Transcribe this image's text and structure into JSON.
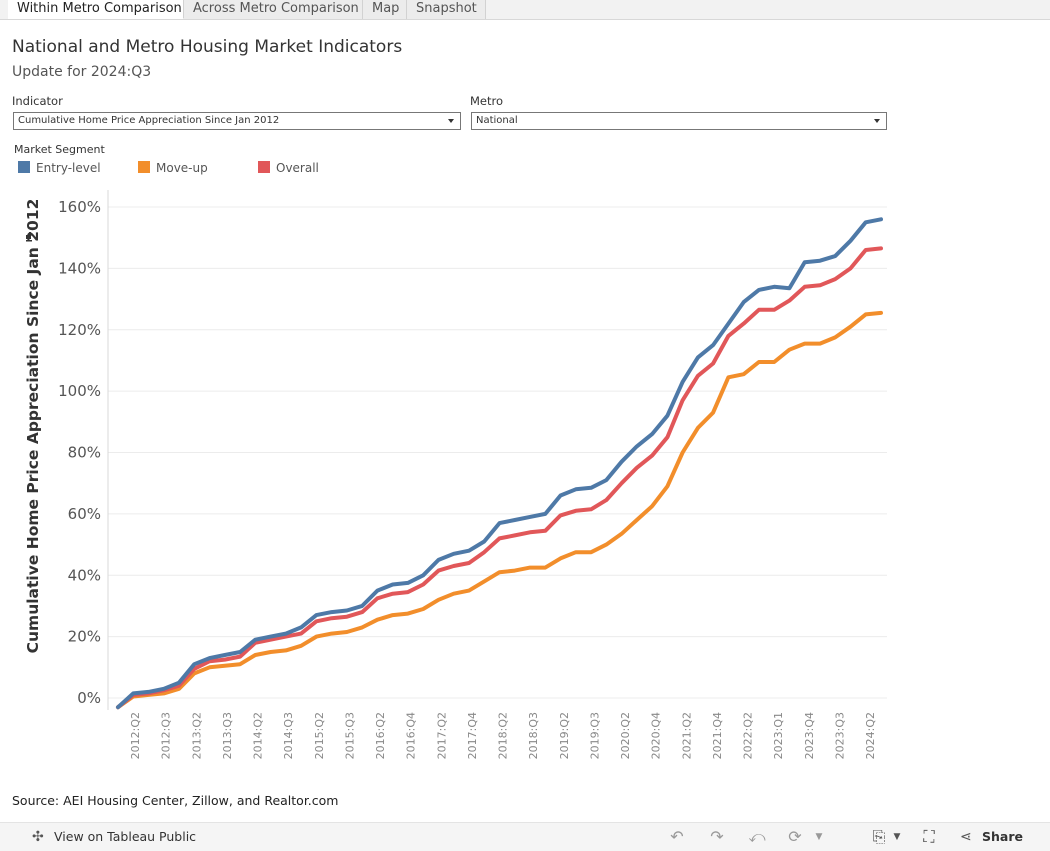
{
  "tabs": [
    {
      "label": "Within Metro Comparison",
      "active": true
    },
    {
      "label": "Across Metro Comparison",
      "active": false
    },
    {
      "label": "Map",
      "active": false
    },
    {
      "label": "Snapshot",
      "active": false
    }
  ],
  "header": {
    "title": "National and Metro Housing Market Indicators",
    "subtitle": "Update for 2024:Q3"
  },
  "filters": {
    "indicator_label": "Indicator",
    "indicator_value": "Cumulative Home Price Appreciation Since Jan 2012",
    "metro_label": "Metro",
    "metro_value": "National"
  },
  "legend": {
    "title": "Market Segment",
    "items": [
      {
        "label": "Entry-level",
        "color": "#4e79a7"
      },
      {
        "label": "Move-up",
        "color": "#f28e2b"
      },
      {
        "label": "Overall",
        "color": "#e15759"
      }
    ]
  },
  "chart_data": {
    "type": "line",
    "ylabel": "Cumulative Home Price Appreciation Since Jan 2012",
    "ylim": [
      -3,
      162
    ],
    "yticks": [
      0,
      20,
      40,
      60,
      80,
      100,
      120,
      140,
      160
    ],
    "ytick_labels": [
      "0%",
      "20%",
      "40%",
      "60%",
      "80%",
      "100%",
      "120%",
      "140%",
      "160%"
    ],
    "x": [
      "2012:Q1",
      "2012:Q2",
      "2012:Q3",
      "2012:Q4",
      "2013:Q1",
      "2013:Q2",
      "2013:Q3",
      "2013:Q4",
      "2014:Q1",
      "2014:Q2",
      "2014:Q3",
      "2014:Q4",
      "2015:Q1",
      "2015:Q2",
      "2015:Q3",
      "2015:Q4",
      "2016:Q1",
      "2016:Q2",
      "2016:Q3",
      "2016:Q4",
      "2017:Q1",
      "2017:Q2",
      "2017:Q3",
      "2017:Q4",
      "2018:Q1",
      "2018:Q2",
      "2018:Q3",
      "2018:Q4",
      "2019:Q1",
      "2019:Q2",
      "2019:Q3",
      "2019:Q4",
      "2020:Q1",
      "2020:Q2",
      "2020:Q3",
      "2020:Q4",
      "2021:Q1",
      "2021:Q2",
      "2021:Q3",
      "2021:Q4",
      "2022:Q1",
      "2022:Q2",
      "2022:Q3",
      "2022:Q4",
      "2023:Q1",
      "2023:Q2",
      "2023:Q3",
      "2023:Q4",
      "2024:Q1",
      "2024:Q2",
      "2024:Q3"
    ],
    "xtick_labels": [
      "2012:Q2",
      "2012:Q3",
      "2013:Q2",
      "2013:Q3",
      "2014:Q2",
      "2014:Q3",
      "2015:Q2",
      "2015:Q3",
      "2016:Q2",
      "2016:Q4",
      "2017:Q2",
      "2017:Q4",
      "2018:Q2",
      "2018:Q3",
      "2019:Q2",
      "2019:Q3",
      "2020:Q2",
      "2020:Q4",
      "2021:Q2",
      "2021:Q4",
      "2022:Q2",
      "2023:Q1",
      "2023:Q4",
      "2023:Q3",
      "2024:Q2"
    ],
    "series": [
      {
        "name": "Entry-level",
        "color": "#4e79a7",
        "values": [
          -3,
          1.5,
          2,
          3,
          5,
          11,
          13,
          14,
          15,
          19,
          20,
          21,
          23,
          27,
          28,
          28.5,
          30,
          35,
          37,
          37.5,
          40,
          45,
          47,
          48,
          51,
          57,
          58,
          59,
          60,
          66,
          68,
          68.5,
          71,
          77,
          82,
          86,
          92,
          103,
          111,
          115,
          122,
          129,
          133,
          134,
          133.5,
          142,
          142.5,
          144,
          149,
          155,
          156
        ]
      },
      {
        "name": "Move-up",
        "color": "#f28e2b",
        "values": [
          -3,
          0.5,
          1,
          1.5,
          3,
          8,
          10,
          10.5,
          11,
          14,
          15,
          15.5,
          17,
          20,
          21,
          21.5,
          23,
          25.5,
          27,
          27.5,
          29,
          32,
          34,
          35,
          38,
          41,
          41.5,
          42.5,
          42.5,
          45.5,
          47.5,
          47.5,
          50,
          53.5,
          58,
          62.5,
          69,
          80,
          88,
          93,
          104.5,
          105.5,
          109.5,
          109.5,
          113.5,
          115.5,
          115.5,
          117.5,
          121,
          125,
          125.5
        ]
      },
      {
        "name": "Overall",
        "color": "#e15759",
        "values": [
          -3,
          1,
          1.5,
          2.5,
          4,
          9.5,
          12,
          12.5,
          13.5,
          18,
          19,
          20,
          21,
          25,
          26,
          26.5,
          28,
          32.5,
          34,
          34.5,
          37,
          41.5,
          43,
          44,
          47.5,
          52,
          53,
          54,
          54.5,
          59.5,
          61,
          61.5,
          64.5,
          70,
          75,
          79,
          85,
          97,
          105,
          109,
          118,
          122,
          126.5,
          126.5,
          129.5,
          134,
          134.5,
          136.5,
          140,
          146,
          146.5
        ]
      }
    ]
  },
  "source": "Source: AEI Housing Center, Zillow, and Realtor.com",
  "footer": {
    "view_label": "View on Tableau Public",
    "share_label": "Share"
  }
}
